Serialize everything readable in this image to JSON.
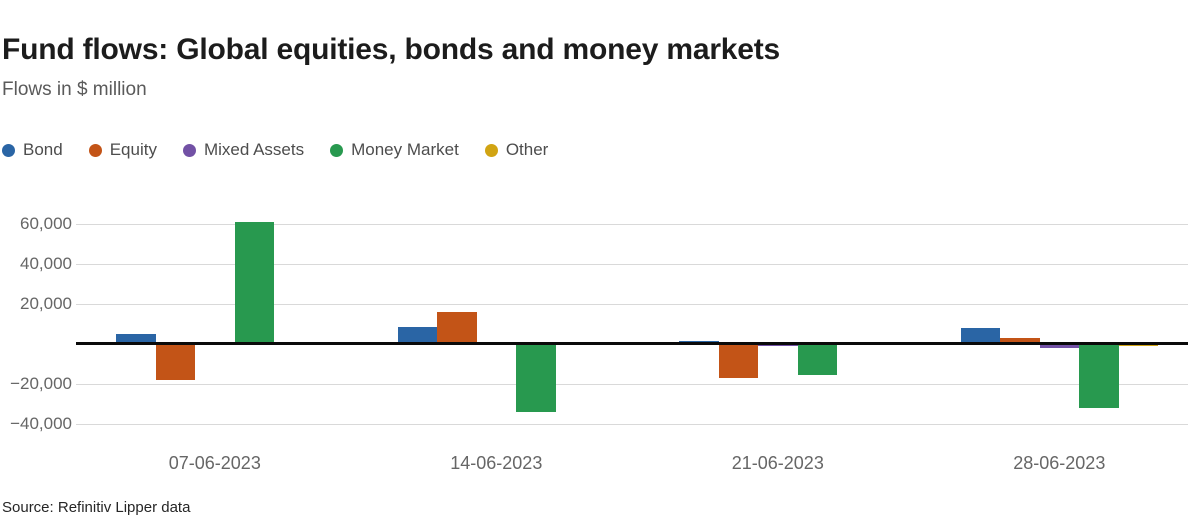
{
  "header": {
    "title": "Fund flows: Global equities, bonds and money markets",
    "subtitle": "Flows in $ million"
  },
  "footer": {
    "source": "Source: Refinitiv Lipper data"
  },
  "colors": {
    "bond": "#2a65a5",
    "equity": "#c35417",
    "mixed_assets": "#7251a5",
    "money_market": "#28994f",
    "other": "#d1a413",
    "zero_line": "#0a0a0a",
    "gridline": "#d9d9d9",
    "tick_text": "#666666"
  },
  "chart_data": {
    "type": "bar",
    "title": "Fund flows: Global equities, bonds and money markets",
    "subtitle": "Flows in $ million",
    "xlabel": "",
    "ylabel": "Flows in $ million",
    "categories": [
      "07-06-2023",
      "14-06-2023",
      "21-06-2023",
      "28-06-2023"
    ],
    "series": [
      {
        "name": "Bond",
        "color": "#2a65a5",
        "values": [
          4600,
          8400,
          1500,
          7600
        ]
      },
      {
        "name": "Equity",
        "color": "#c35417",
        "values": [
          -18300,
          15900,
          -17100,
          2900
        ]
      },
      {
        "name": "Mixed Assets",
        "color": "#7251a5",
        "values": [
          800,
          -900,
          -1200,
          -2100
        ]
      },
      {
        "name": "Money Market",
        "color": "#28994f",
        "values": [
          61000,
          -34100,
          -15500,
          -32400
        ]
      },
      {
        "name": "Other",
        "color": "#d1a413",
        "values": [
          0,
          0,
          0,
          -1000
        ]
      }
    ],
    "ylim": [
      -45000,
      70000
    ],
    "yticks": [
      {
        "value": 60000,
        "label": "60,000"
      },
      {
        "value": 40000,
        "label": "40,000"
      },
      {
        "value": 20000,
        "label": "20,000"
      },
      {
        "value": 0,
        "label": ""
      },
      {
        "value": -20000,
        "label": "−20,000"
      },
      {
        "value": -40000,
        "label": "−40,000"
      }
    ],
    "grid": true,
    "legend_position": "top",
    "source": "Source: Refinitiv Lipper data"
  }
}
